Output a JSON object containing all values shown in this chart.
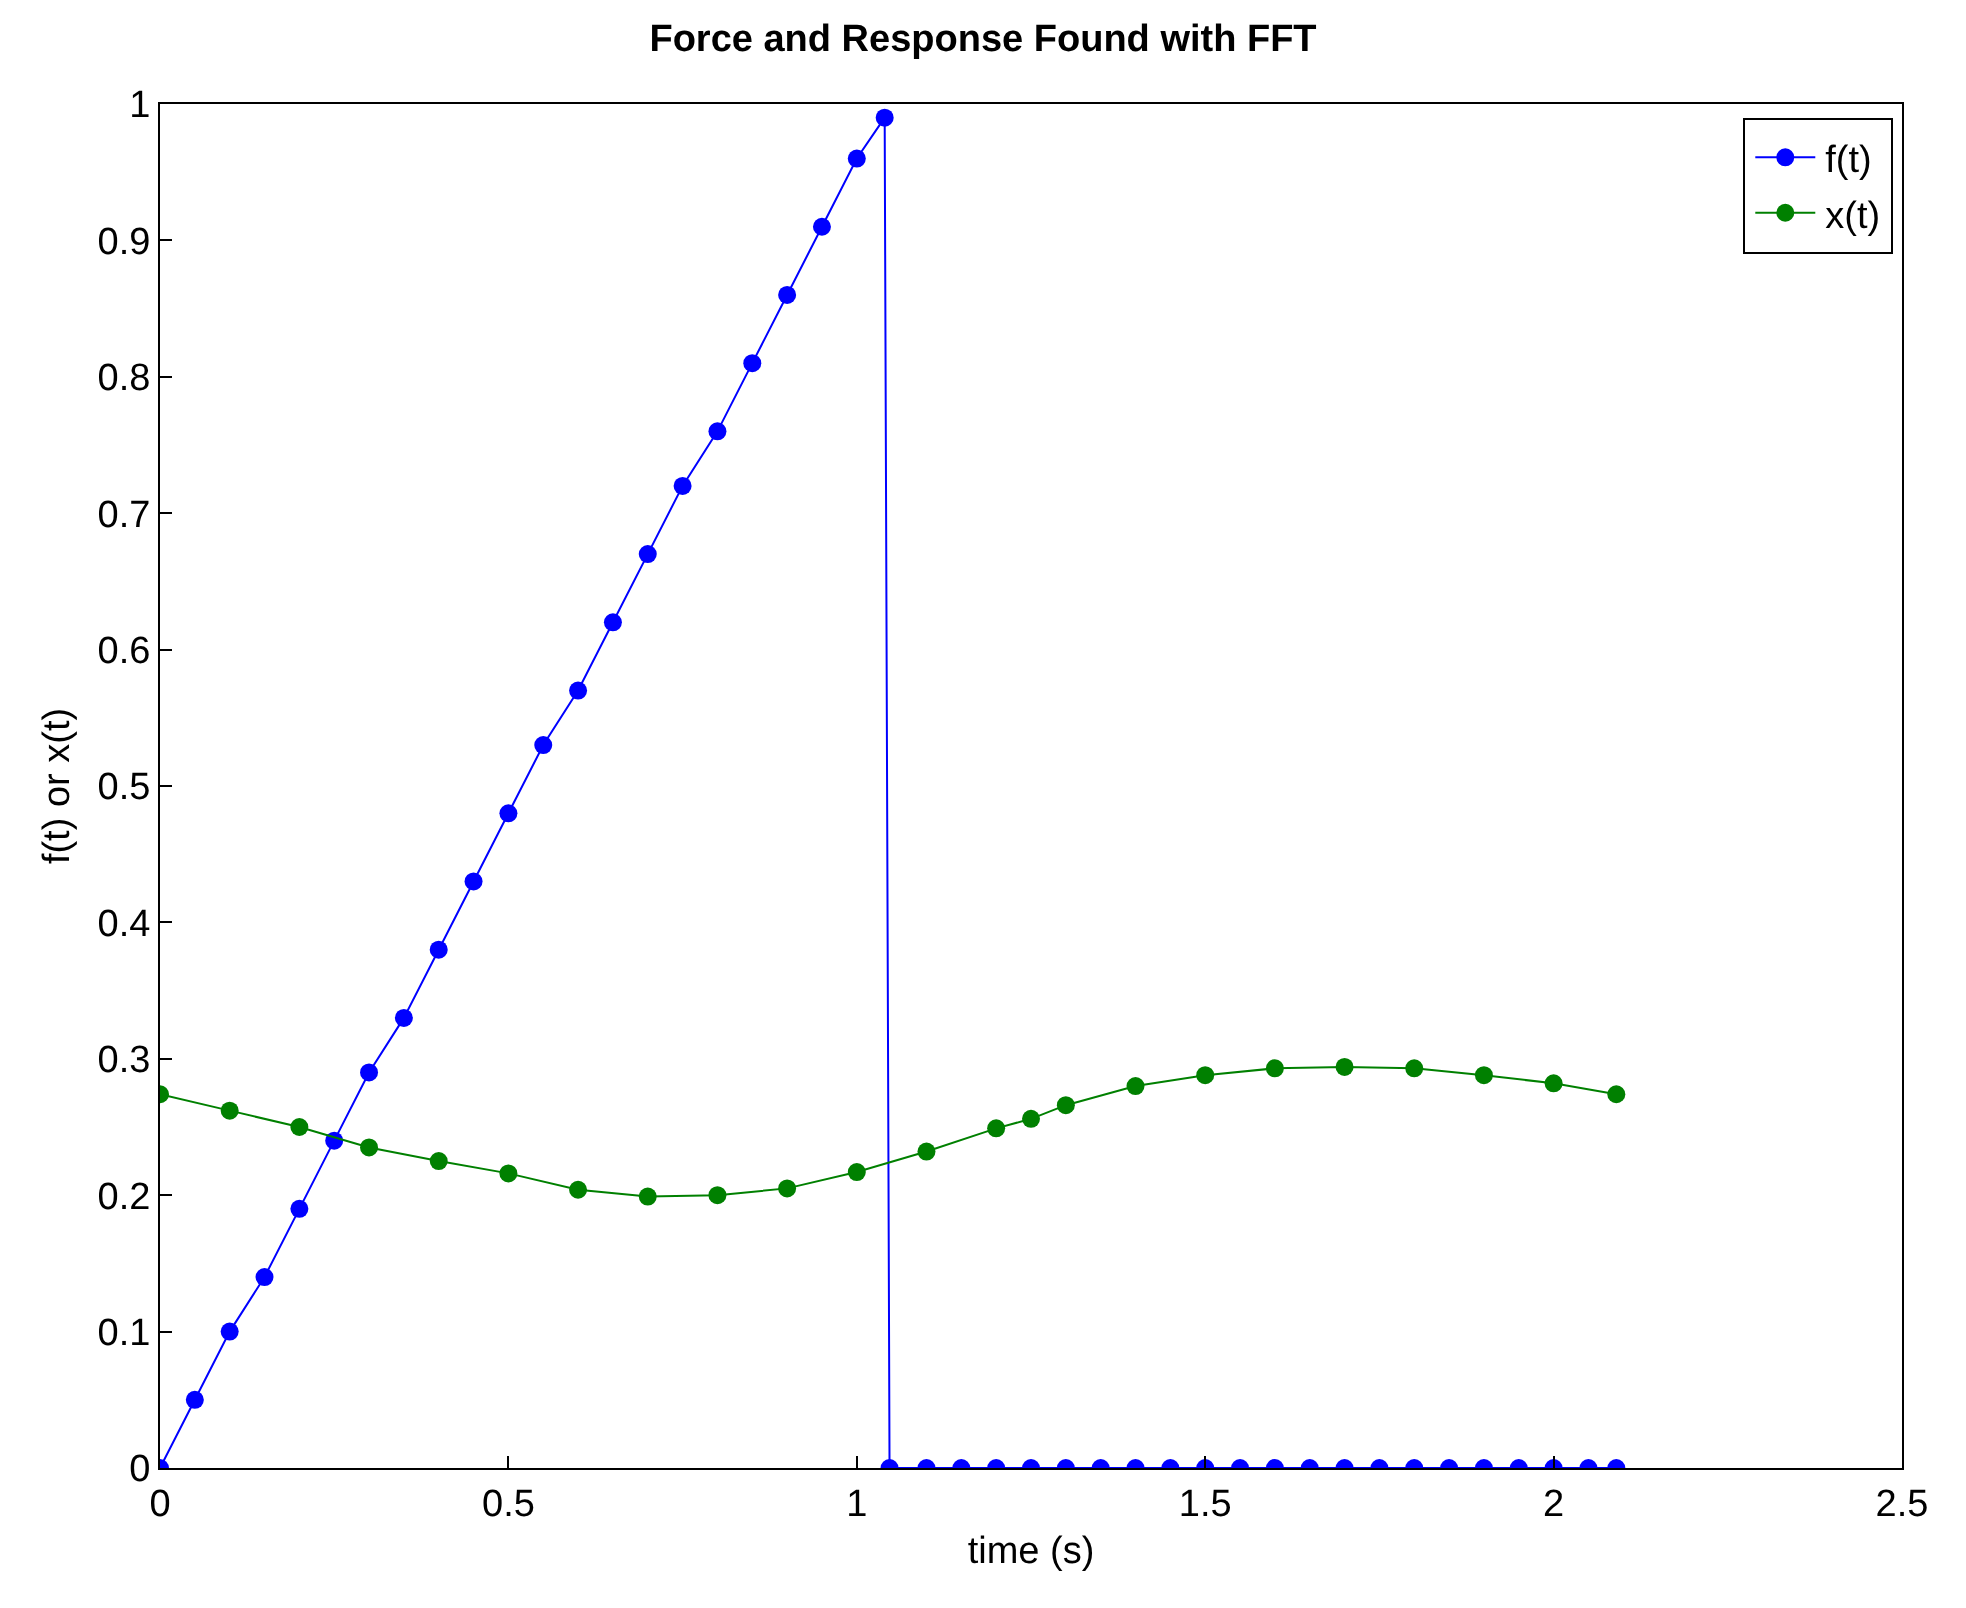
{
  "chart_data": {
    "type": "line",
    "title": "Force and Response Found with FFT",
    "xlabel": "time (s)",
    "ylabel": "f(t) or x(t)",
    "xlim": [
      0,
      2.5
    ],
    "xticks": [
      0,
      0.5,
      1,
      1.5,
      2,
      2.5
    ],
    "ylim": [
      0,
      1
    ],
    "yticks": [
      0,
      0.1,
      0.2,
      0.3,
      0.4,
      0.5,
      0.6,
      0.7,
      0.8,
      0.9,
      1
    ],
    "legend": "top right",
    "marker": "circle",
    "line_style": "solid",
    "series": [
      {
        "name": "f(t)",
        "color": "#0000ff",
        "x": [
          0,
          0.05,
          0.1,
          0.15,
          0.2,
          0.25,
          0.3,
          0.35,
          0.4,
          0.45,
          0.5,
          0.55,
          0.6,
          0.65,
          0.7,
          0.75,
          0.8,
          0.85,
          0.9,
          0.95,
          1.0,
          1.04,
          1.047,
          1.1,
          1.15,
          1.2,
          1.25,
          1.3,
          1.35,
          1.4,
          1.45,
          1.5,
          1.55,
          1.6,
          1.65,
          1.7,
          1.75,
          1.8,
          1.85,
          1.9,
          1.95,
          2.0,
          2.05,
          2.09
        ],
        "values": [
          0,
          0.05,
          0.1,
          0.14,
          0.19,
          0.24,
          0.29,
          0.33,
          0.38,
          0.43,
          0.48,
          0.53,
          0.57,
          0.62,
          0.67,
          0.72,
          0.76,
          0.81,
          0.86,
          0.91,
          0.96,
          0.99,
          0,
          0,
          0,
          0,
          0,
          0,
          0,
          0,
          0,
          0,
          0,
          0,
          0,
          0,
          0,
          0,
          0,
          0,
          0,
          0,
          0,
          0
        ]
      },
      {
        "name": "x(t)",
        "color": "#008000",
        "x": [
          0,
          0.1,
          0.2,
          0.3,
          0.4,
          0.5,
          0.6,
          0.7,
          0.8,
          0.9,
          1.0,
          1.1,
          1.2,
          1.25,
          1.3,
          1.4,
          1.5,
          1.6,
          1.7,
          1.8,
          1.9,
          2.0,
          2.09
        ],
        "values": [
          0.274,
          0.262,
          0.25,
          0.235,
          0.225,
          0.216,
          0.204,
          0.199,
          0.2,
          0.205,
          0.217,
          0.232,
          0.249,
          0.256,
          0.266,
          0.28,
          0.288,
          0.293,
          0.294,
          0.293,
          0.288,
          0.282,
          0.274
        ]
      }
    ]
  }
}
